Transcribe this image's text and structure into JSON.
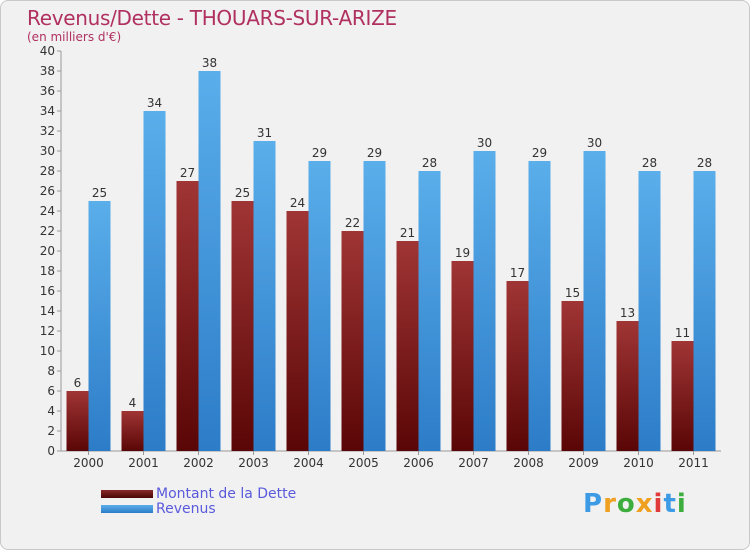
{
  "chart_data": {
    "type": "bar",
    "title": "Revenus/Dette - THOUARS-SUR-ARIZE",
    "subtitle": "(en milliers d'€)",
    "xlabel": "",
    "ylabel": "",
    "ylim": [
      0,
      40
    ],
    "ytick_step": 2,
    "grid": false,
    "legend_position": "bottom-left",
    "categories": [
      "2000",
      "2001",
      "2002",
      "2003",
      "2004",
      "2005",
      "2006",
      "2007",
      "2008",
      "2009",
      "2010",
      "2011"
    ],
    "series": [
      {
        "name": "Montant de la Dette",
        "color": "#7a1c1c",
        "values": [
          6,
          4,
          27,
          25,
          24,
          22,
          21,
          19,
          17,
          15,
          13,
          11
        ]
      },
      {
        "name": "Revenus",
        "color": "#3d9be6",
        "values": [
          25,
          34,
          38,
          31,
          29,
          29,
          28,
          30,
          29,
          30,
          28,
          28
        ]
      }
    ]
  },
  "logo": {
    "letters": [
      "P",
      "r",
      "o",
      "x",
      "i",
      "t",
      "i"
    ],
    "colors": [
      "#3d9be6",
      "#f0a020",
      "#3dae3d",
      "#f0a020",
      "#e03a3a",
      "#3d9be6",
      "#3dae3d"
    ]
  }
}
